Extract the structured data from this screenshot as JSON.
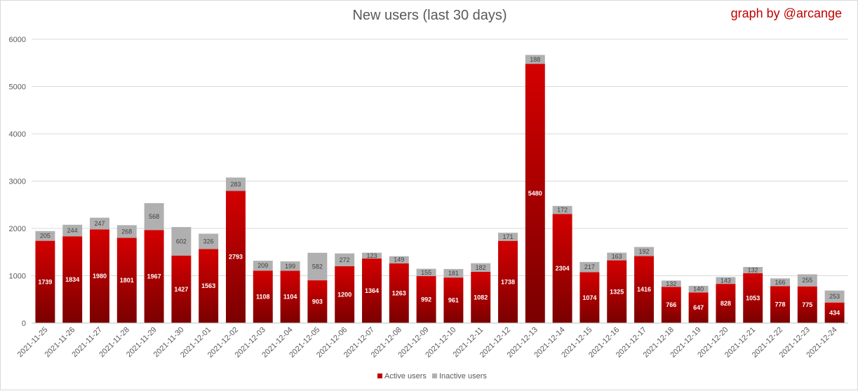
{
  "chart_data": {
    "type": "bar",
    "stacked": true,
    "title": "New users (last 30 days)",
    "credit": "graph by @arcange",
    "categories": [
      "2021-11-25",
      "2021-11-26",
      "2021-11-27",
      "2021-11-28",
      "2021-11-29",
      "2021-11-30",
      "2021-12-01",
      "2021-12-02",
      "2021-12-03",
      "2021-12-04",
      "2021-12-05",
      "2021-12-06",
      "2021-12-07",
      "2021-12-08",
      "2021-12-09",
      "2021-12-10",
      "2021-12-11",
      "2021-12-12",
      "2021-12-13",
      "2021-12-14",
      "2021-12-15",
      "2021-12-16",
      "2021-12-17",
      "2021-12-18",
      "2021-12-19",
      "2021-12-20",
      "2021-12-21",
      "2021-12-22",
      "2021-12-23",
      "2021-12-24"
    ],
    "series": [
      {
        "name": "Active users",
        "color": "#c00000",
        "values": [
          1739,
          1834,
          1980,
          1801,
          1967,
          1427,
          1563,
          2793,
          1108,
          1104,
          903,
          1200,
          1364,
          1263,
          992,
          961,
          1082,
          1738,
          5480,
          2304,
          1074,
          1325,
          1416,
          766,
          647,
          828,
          1053,
          778,
          775,
          434
        ]
      },
      {
        "name": "Inactive users",
        "color": "#b0b0b0",
        "values": [
          205,
          244,
          247,
          268,
          568,
          602,
          326,
          283,
          209,
          199,
          582,
          272,
          123,
          149,
          155,
          181,
          182,
          171,
          188,
          172,
          217,
          163,
          192,
          132,
          140,
          143,
          132,
          166,
          255,
          253
        ]
      }
    ],
    "ylim": [
      0,
      6000
    ],
    "yticks": [
      "0",
      "1000",
      "2000",
      "3000",
      "4000",
      "5000",
      "6000"
    ],
    "grid": true,
    "legend_position": "bottom"
  }
}
